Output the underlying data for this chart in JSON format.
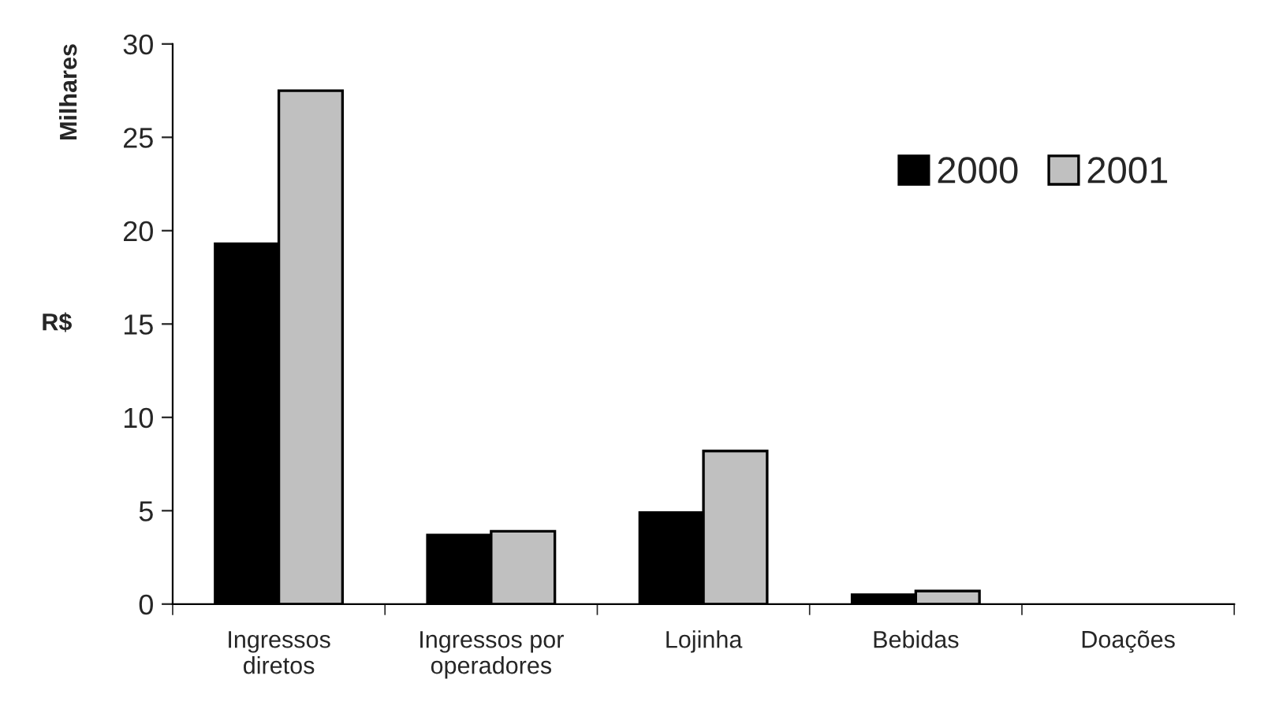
{
  "chart_data": {
    "type": "bar",
    "ylabel": "R$",
    "annotations": [
      "Milhares"
    ],
    "categories": [
      "Ingressos\ndiretos",
      "Ingressos por\noperadores",
      "Lojinha",
      "Bebidas",
      "Doações"
    ],
    "series": [
      {
        "name": "2000",
        "color": "#000000",
        "values": [
          19.3,
          3.7,
          4.9,
          0.5,
          0
        ]
      },
      {
        "name": "2001",
        "color": "#c0c0c0",
        "values": [
          27.5,
          3.9,
          8.2,
          0.7,
          0
        ]
      }
    ],
    "ylim": [
      0,
      30
    ],
    "yticks": [
      0,
      5,
      10,
      15,
      20,
      25,
      30
    ],
    "grid": false,
    "legend": "top right"
  }
}
